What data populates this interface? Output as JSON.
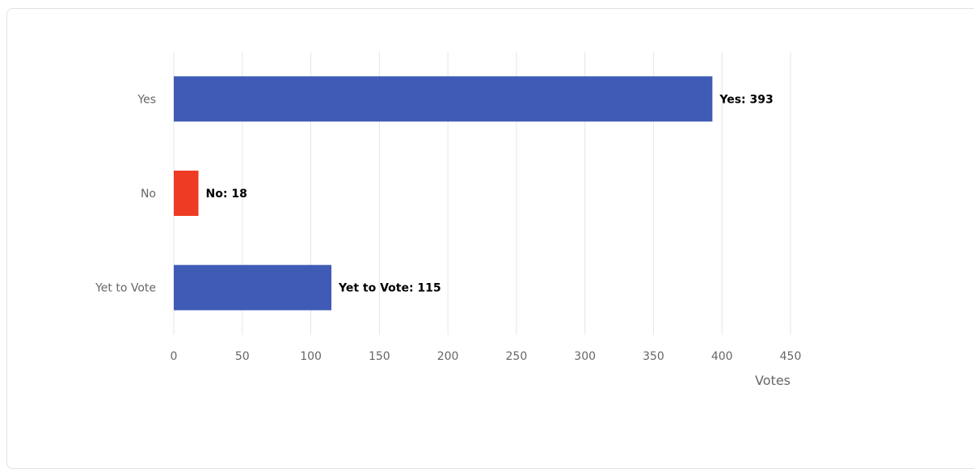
{
  "chart_data": {
    "type": "bar",
    "orientation": "horizontal",
    "categories": [
      "Yes",
      "No",
      "Yet to Vote"
    ],
    "values": [
      393,
      18,
      115
    ],
    "data_labels": [
      "Yes: 393",
      "No: 18",
      "Yet to Vote: 115"
    ],
    "colors": [
      "#3f5bb5",
      "#ee3b24",
      "#3f5bb5"
    ],
    "xlabel": "Votes",
    "xlim": [
      0,
      450
    ],
    "xticks": [
      0,
      50,
      100,
      150,
      200,
      250,
      300,
      350,
      400,
      450
    ],
    "grid": true,
    "legend": "none"
  }
}
